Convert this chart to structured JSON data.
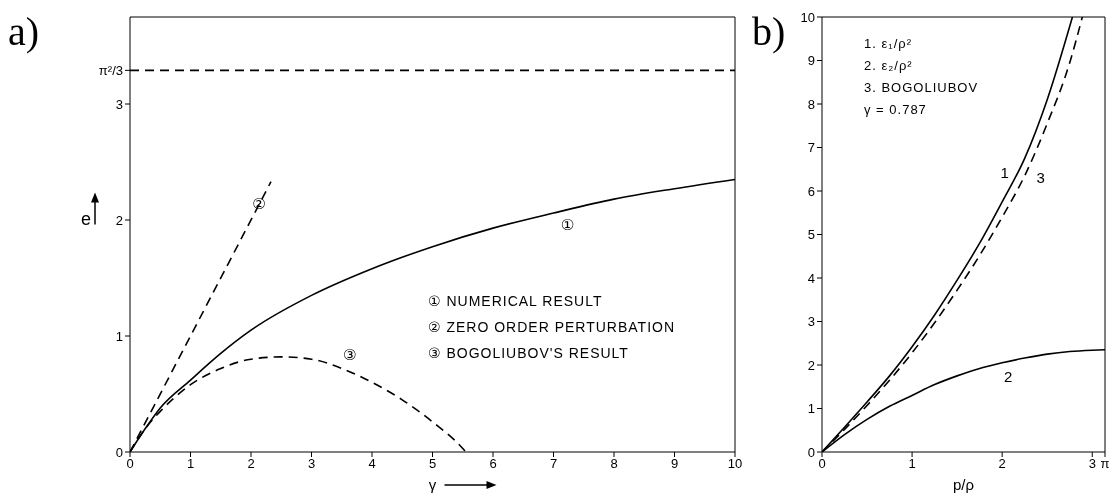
{
  "chart_data": [
    {
      "type": "line",
      "title": "a)",
      "xlabel": "γ",
      "ylabel": "e",
      "xlim": [
        0,
        10
      ],
      "ylim": [
        0,
        3.75
      ],
      "xticks": [
        0,
        1,
        2,
        3,
        4,
        5,
        6,
        7,
        8,
        9,
        10
      ],
      "yticks": [
        0,
        1,
        2,
        3,
        {
          "value": 3.29,
          "label": "π²/3"
        }
      ],
      "marker": "none",
      "series": [
        {
          "name": "①",
          "color": "#000000",
          "line_style": "solid",
          "x": [
            0,
            0.25,
            0.5,
            1,
            1.5,
            2,
            3,
            4,
            5,
            6,
            7,
            8,
            9,
            10
          ],
          "values": [
            0,
            0.2,
            0.38,
            0.62,
            0.85,
            1.05,
            1.35,
            1.58,
            1.77,
            1.93,
            2.06,
            2.18,
            2.27,
            2.35
          ]
        },
        {
          "name": "②",
          "color": "#000000",
          "line_style": "dashed",
          "x": [
            0,
            2.33
          ],
          "values": [
            0,
            2.33
          ]
        },
        {
          "name": "③",
          "color": "#000000",
          "line_style": "dashed",
          "x": [
            0,
            0.25,
            0.5,
            1,
            1.5,
            2,
            2.5,
            3,
            3.5,
            4,
            4.5,
            5,
            5.5,
            5.55
          ],
          "values": [
            0,
            0.2,
            0.35,
            0.58,
            0.72,
            0.8,
            0.82,
            0.8,
            0.72,
            0.6,
            0.45,
            0.26,
            0.03,
            0
          ]
        }
      ],
      "ref_lines": [
        {
          "axis": "y",
          "value": 3.29,
          "line_style": "dashed",
          "color": "#000000"
        }
      ],
      "annotations": [
        "① NUMERICAL RESULT",
        "② ZERO ORDER PERTURBATION",
        "③ BOGOLIUBOV'S RESULT"
      ]
    },
    {
      "type": "line",
      "title": "b)",
      "xlabel": "p/ρ",
      "xlim": [
        0,
        3.1416
      ],
      "ylim": [
        0,
        10
      ],
      "xticks": [
        0,
        1,
        2,
        3,
        {
          "value": 3.1416,
          "label": "π"
        }
      ],
      "yticks": [
        0,
        1,
        2,
        3,
        4,
        5,
        6,
        7,
        8,
        9,
        10
      ],
      "marker": "none",
      "series": [
        {
          "name": "1",
          "color": "#000000",
          "line_style": "solid",
          "x": [
            0,
            0.25,
            0.5,
            0.75,
            1,
            1.25,
            1.5,
            1.75,
            2,
            2.25,
            2.5,
            2.78
          ],
          "values": [
            0,
            0.57,
            1.15,
            1.75,
            2.42,
            3.15,
            3.95,
            4.8,
            5.75,
            6.75,
            8.1,
            10
          ]
        },
        {
          "name": "2",
          "color": "#000000",
          "line_style": "solid",
          "x": [
            0,
            0.25,
            0.5,
            0.75,
            1,
            1.25,
            1.5,
            1.75,
            2,
            2.25,
            2.5,
            2.75,
            3,
            3.1416
          ],
          "values": [
            0,
            0.4,
            0.75,
            1.05,
            1.3,
            1.55,
            1.75,
            1.92,
            2.05,
            2.16,
            2.25,
            2.31,
            2.34,
            2.35
          ]
        },
        {
          "name": "3",
          "color": "#000000",
          "line_style": "dashed",
          "x": [
            0,
            0.25,
            0.5,
            0.75,
            1,
            1.25,
            1.5,
            1.75,
            2,
            2.25,
            2.5,
            2.75,
            2.89
          ],
          "values": [
            0,
            0.52,
            1.07,
            1.65,
            2.28,
            2.97,
            3.72,
            4.52,
            5.4,
            6.35,
            7.55,
            8.95,
            10
          ]
        }
      ],
      "annotations": [
        "1. ε₁/ρ²",
        "2. ε₂/ρ²",
        "3. BOGOLIUBOV",
        "γ = 0.787"
      ]
    }
  ]
}
